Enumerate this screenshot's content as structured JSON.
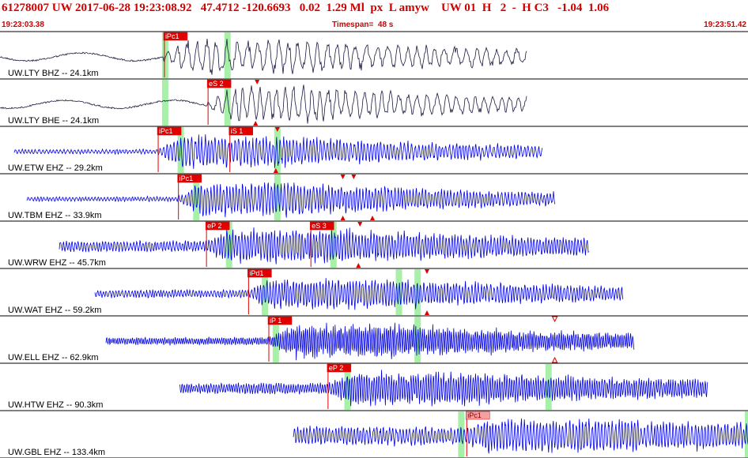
{
  "header": {
    "event_line": "61278007 UW 2017-06-28 19:23:08.92   47.4712 -120.6693   0.02  1.29 Ml  px  L amyw    UW 01  H   2  -  H C3   -1.04  1.06",
    "start_time": "19:23:03.38",
    "timespan_label": "Timespan=  48 s",
    "end_time": "19:23:51.42"
  },
  "colors": {
    "header_text": "#d00000",
    "trace_black": "#1a1a40",
    "trace_blue": "#0000e0",
    "pick_red": "#e00000",
    "pick_pale": "#f4a0a0",
    "window_green": "#a8f0a8",
    "separator": "#000000"
  },
  "traces": [
    {
      "label": "UW.LTY BHZ -- 24.1km",
      "color": "black",
      "start_s": 0.0,
      "end_s": 33.8,
      "amp_pre": 6,
      "amp_post": 22,
      "freq": 0.9,
      "windows_s": [
        10.6,
        14.6
      ],
      "picks": [
        {
          "text": "iPc1",
          "t": 10.5,
          "style": "red"
        }
      ],
      "triangles": []
    },
    {
      "label": "UW.LTY BHE -- 24.1km",
      "color": "black",
      "start_s": 0.0,
      "end_s": 33.8,
      "amp_pre": 2,
      "amp_post": 22,
      "freq": 1.0,
      "windows_s": [
        10.6,
        14.6
      ],
      "picks": [
        {
          "text": "eS 2",
          "t": 13.3,
          "style": "red"
        }
      ],
      "triangles": [
        {
          "t": 16.5,
          "dir": "down",
          "pos": "top"
        },
        {
          "t": 16.4,
          "dir": "up",
          "pos": "bottom"
        }
      ]
    },
    {
      "label": "UW.ETW EHZ -- 29.2km",
      "color": "blue",
      "start_s": 0.9,
      "end_s": 34.8,
      "amp_pre": 3,
      "amp_post": 20,
      "freq": 1.6,
      "windows_s": [
        11.6,
        17.8
      ],
      "picks": [
        {
          "text": "iPc1",
          "t": 10.1,
          "style": "red"
        },
        {
          "text": "iS 1",
          "t": 14.7,
          "style": "red"
        }
      ],
      "triangles": [
        {
          "t": 17.8,
          "dir": "down",
          "pos": "top"
        },
        {
          "t": 17.7,
          "dir": "up",
          "pos": "bottom"
        }
      ]
    },
    {
      "label": "UW.TBM EHZ -- 33.9km",
      "color": "blue",
      "start_s": 1.7,
      "end_s": 35.6,
      "amp_pre": 3,
      "amp_post": 22,
      "freq": 1.7,
      "windows_s": [
        12.6,
        17.8
      ],
      "picks": [
        {
          "text": "iPc1",
          "t": 11.4,
          "style": "red"
        }
      ],
      "triangles": [
        {
          "t": 22.0,
          "dir": "down",
          "pos": "top"
        },
        {
          "t": 22.7,
          "dir": "down",
          "pos": "top"
        },
        {
          "t": 22.0,
          "dir": "up",
          "pos": "bottom"
        },
        {
          "t": 23.9,
          "dir": "up",
          "pos": "bottom"
        }
      ]
    },
    {
      "label": "UW.WRW EHZ -- 45.7km",
      "color": "blue",
      "start_s": 3.8,
      "end_s": 37.8,
      "amp_pre": 7,
      "amp_post": 22,
      "freq": 1.8,
      "windows_s": [
        14.7,
        21.4
      ],
      "picks": [
        {
          "text": "eP 2",
          "t": 13.2,
          "style": "red"
        },
        {
          "text": "eS 3",
          "t": 19.9,
          "style": "red"
        }
      ],
      "triangles": [
        {
          "t": 23.1,
          "dir": "down",
          "pos": "top"
        },
        {
          "t": 23.0,
          "dir": "up",
          "pos": "bottom"
        }
      ]
    },
    {
      "label": "UW.WAT EHZ -- 59.2km",
      "color": "blue",
      "start_s": 6.1,
      "end_s": 40.0,
      "amp_pre": 5,
      "amp_post": 20,
      "freq": 1.8,
      "windows_s": [
        17.0,
        25.6,
        26.8
      ],
      "picks": [
        {
          "text": "iPd1",
          "t": 15.9,
          "style": "red"
        }
      ],
      "triangles": [
        {
          "t": 27.4,
          "dir": "down",
          "pos": "top"
        },
        {
          "t": 27.4,
          "dir": "up",
          "pos": "bottom"
        }
      ]
    },
    {
      "label": "UW.ELL EHZ -- 62.9km",
      "color": "blue",
      "start_s": 6.8,
      "end_s": 40.7,
      "amp_pre": 5,
      "amp_post": 22,
      "freq": 2.6,
      "windows_s": [
        17.7,
        26.8
      ],
      "picks": [
        {
          "text": "iP 1",
          "t": 17.2,
          "style": "red"
        }
      ],
      "triangles": [
        {
          "t": 35.6,
          "dir": "down-open",
          "pos": "top"
        },
        {
          "t": 35.6,
          "dir": "up-open",
          "pos": "bottom"
        }
      ]
    },
    {
      "label": "UW.HTW EHZ -- 90.3km",
      "color": "blue",
      "start_s": 11.5,
      "end_s": 45.4,
      "amp_pre": 7,
      "amp_post": 22,
      "freq": 2.2,
      "windows_s": [
        22.3,
        35.2
      ],
      "picks": [
        {
          "text": "eP 2",
          "t": 21.0,
          "style": "red"
        }
      ],
      "triangles": []
    },
    {
      "label": "UW.GBL EHZ -- 133.4km",
      "color": "blue",
      "start_s": 18.8,
      "end_s": 52.7,
      "amp_pre": 12,
      "amp_post": 22,
      "freq": 1.7,
      "windows_s": [
        29.6,
        48.0
      ],
      "picks": [
        {
          "text": "iPc1",
          "t": 29.9,
          "style": "pale"
        }
      ],
      "triangles": []
    }
  ]
}
